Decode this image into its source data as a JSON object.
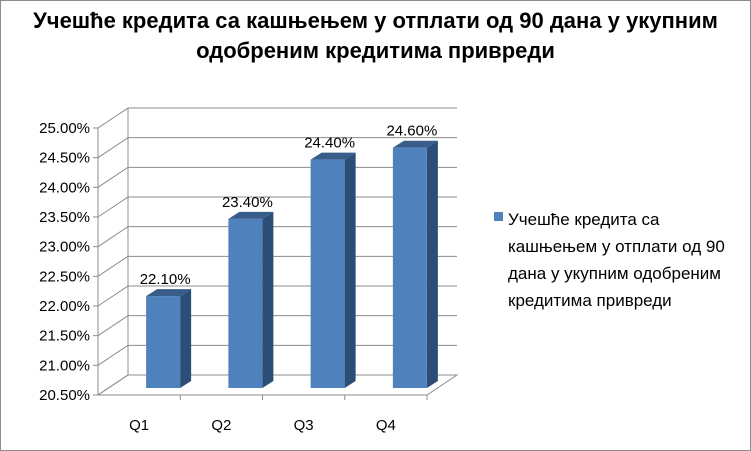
{
  "chart_data": {
    "type": "bar",
    "title": "Учешће кредита са кашњењем у отплати од 90 дана у укупним одобреним кредитима привреди",
    "categories": [
      "Q1",
      "Q2",
      "Q3",
      "Q4"
    ],
    "series": [
      {
        "name": "Учешће кредита са кашњењем у отплати од 90 дана у укупним одобреним кредитима привреди",
        "values": [
          22.1,
          23.4,
          24.4,
          24.6
        ],
        "data_labels": [
          "22.10%",
          "23.40%",
          "24.40%",
          "24.60%"
        ]
      }
    ],
    "ylim": [
      20.5,
      25.0
    ],
    "y_ticks": [
      20.5,
      21.0,
      21.5,
      22.0,
      22.5,
      23.0,
      23.5,
      24.0,
      24.5,
      25.0
    ],
    "y_tick_labels": [
      "20.50%",
      "21.00%",
      "21.50%",
      "22.00%",
      "22.50%",
      "23.00%",
      "23.50%",
      "24.00%",
      "24.50%",
      "25.00%"
    ],
    "grid": true,
    "legend_position": "right",
    "style": "3d-column",
    "colors": {
      "bar_front": "#4f81bd",
      "bar_side": "#2c4d75",
      "bar_top": "#385d8a",
      "grid": "#8c8c8c"
    }
  }
}
